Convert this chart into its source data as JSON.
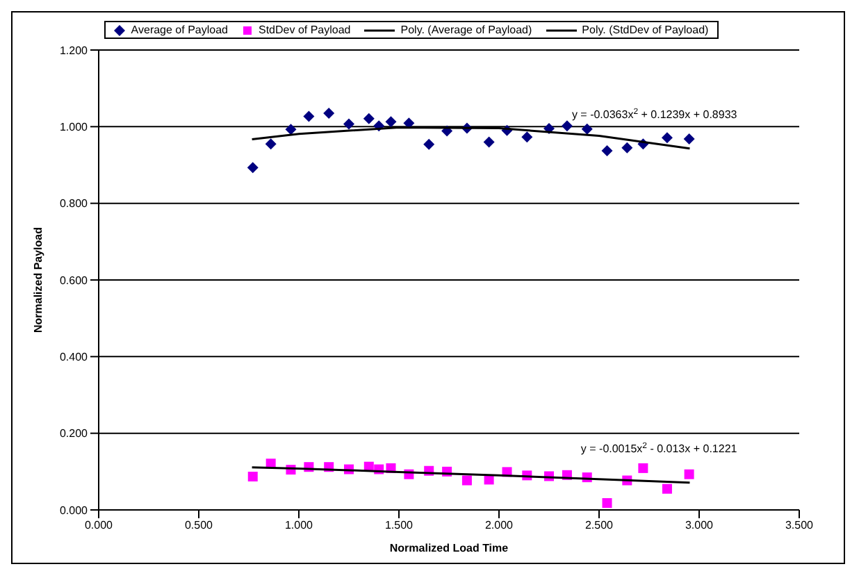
{
  "chart_data": {
    "type": "scatter",
    "xlabel": "Normalized Load Time",
    "ylabel": "Normalized Payload",
    "xlim": [
      0,
      3.5
    ],
    "xticks": [
      {
        "value": 0,
        "label": "0.000"
      },
      {
        "value": 0.5,
        "label": "0.500"
      },
      {
        "value": 1,
        "label": "1.000"
      },
      {
        "value": 1.5,
        "label": "1.500"
      },
      {
        "value": 2,
        "label": "2.000"
      },
      {
        "value": 2.5,
        "label": "2.500"
      },
      {
        "value": 3,
        "label": "3.000"
      },
      {
        "value": 3.5,
        "label": "3.500"
      }
    ],
    "ylim": [
      0,
      1.2
    ],
    "yticks": [
      {
        "value": 0,
        "label": "0.000"
      },
      {
        "value": 0.2,
        "label": "0.200"
      },
      {
        "value": 0.4,
        "label": "0.400"
      },
      {
        "value": 0.6,
        "label": "0.600"
      },
      {
        "value": 0.8,
        "label": "0.800"
      },
      {
        "value": 1,
        "label": "1.000"
      },
      {
        "value": 1.2,
        "label": "1.200"
      }
    ],
    "grid": "y",
    "legend": "top",
    "x": [
      0.77,
      0.86,
      0.96,
      1.05,
      1.15,
      1.25,
      1.35,
      1.4,
      1.46,
      1.55,
      1.65,
      1.74,
      1.84,
      1.95,
      2.04,
      2.14,
      2.25,
      2.34,
      2.44,
      2.54,
      2.64,
      2.72,
      2.84,
      2.95
    ],
    "series": [
      {
        "name": "Average of Payload",
        "marker": "diamond",
        "color": "#000080",
        "values": [
          0.893,
          0.955,
          0.993,
          1.027,
          1.035,
          1.007,
          1.021,
          1.002,
          1.013,
          1.009,
          0.954,
          0.989,
          0.996,
          0.96,
          0.99,
          0.973,
          0.995,
          1.002,
          0.994,
          0.937,
          0.945,
          0.955,
          0.971,
          0.968
        ]
      },
      {
        "name": "StdDev of Payload",
        "marker": "square",
        "color": "#ff00ff",
        "values": [
          0.087,
          0.121,
          0.105,
          0.112,
          0.112,
          0.106,
          0.113,
          0.106,
          0.109,
          0.093,
          0.102,
          0.1,
          0.077,
          0.079,
          0.099,
          0.09,
          0.088,
          0.091,
          0.085,
          0.018,
          0.077,
          0.109,
          0.055,
          0.093
        ]
      },
      {
        "name": "Poly. (Average of Payload)",
        "type": "line",
        "color": "#000000",
        "x": [
          0.766,
          1.0,
          1.5,
          2.0,
          2.5,
          2.953
        ],
        "values": [
          0.967,
          0.981,
          0.998,
          0.996,
          0.976,
          0.943
        ]
      },
      {
        "name": "Poly. (StdDev of Payload)",
        "type": "line",
        "color": "#000000",
        "x": [
          0.766,
          1.0,
          1.5,
          2.0,
          2.5,
          2.953
        ],
        "values": [
          0.111,
          0.108,
          0.099,
          0.09,
          0.08,
          0.071
        ]
      }
    ],
    "annotations": [
      "y = -0.0363x$^{2}$ + 0.1239x + 0.8933",
      "y = -0.0015x$^{2}$ - 0.013x + 0.1221"
    ]
  }
}
